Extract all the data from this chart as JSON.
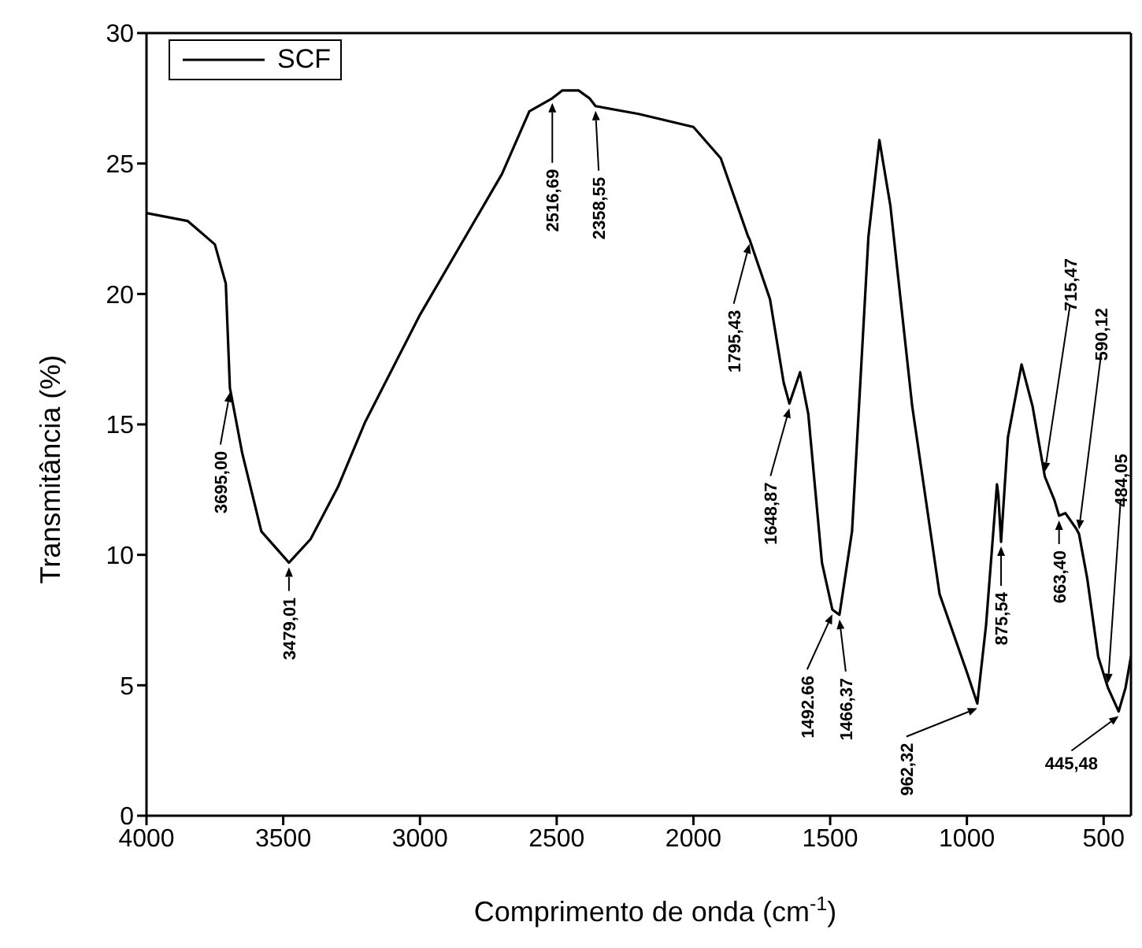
{
  "chart_data": {
    "type": "line",
    "xlabel": "Comprimento de onda (cm$^{-1}$)",
    "ylabel": "Transmitância (%)",
    "xlim": [
      4000,
      400
    ],
    "xticks": [
      4000,
      3500,
      3000,
      2500,
      2000,
      1500,
      1000,
      500
    ],
    "ylim": [
      0,
      30
    ],
    "yticks": [
      0,
      5,
      10,
      15,
      20,
      25,
      30
    ],
    "legend": "top left",
    "grid": false,
    "marker": "none",
    "line_style": "solid",
    "series": [
      {
        "name": "SCF",
        "color": "#000000",
        "x": [
          4000,
          3850,
          3750,
          3710,
          3695,
          3650,
          3580,
          3479,
          3400,
          3300,
          3200,
          3000,
          2800,
          2700,
          2600,
          2516,
          2480,
          2420,
          2380,
          2358,
          2200,
          2000,
          1900,
          1800,
          1795,
          1720,
          1670,
          1649,
          1610,
          1580,
          1530,
          1492,
          1466,
          1420,
          1360,
          1320,
          1280,
          1200,
          1100,
          1000,
          962,
          930,
          890,
          885,
          875,
          850,
          800,
          760,
          715,
          680,
          663,
          640,
          600,
          590,
          560,
          520,
          484,
          445,
          420,
          400
        ],
        "values": [
          23.1,
          22.8,
          21.9,
          20.4,
          16.4,
          13.9,
          10.9,
          9.7,
          10.6,
          12.6,
          15.1,
          19.2,
          22.8,
          24.6,
          27.0,
          27.5,
          27.8,
          27.8,
          27.5,
          27.2,
          26.9,
          26.4,
          25.2,
          22.2,
          22.1,
          19.8,
          16.6,
          15.8,
          17.0,
          15.4,
          9.7,
          7.9,
          7.7,
          10.9,
          22.2,
          25.9,
          23.4,
          15.7,
          8.5,
          5.5,
          4.3,
          7.3,
          12.7,
          12.3,
          10.5,
          14.5,
          17.3,
          15.7,
          13.0,
          12.1,
          11.5,
          11.6,
          11.0,
          10.8,
          9.1,
          6.1,
          4.9,
          4.0,
          4.9,
          6.1
        ]
      }
    ],
    "annotations": [
      {
        "text": "3695,00",
        "x": 3695,
        "y": 16.4
      },
      {
        "text": "3479,01",
        "x": 3479,
        "y": 9.7
      },
      {
        "text": "2516,69",
        "x": 2516,
        "y": 27.5
      },
      {
        "text": "2358,55",
        "x": 2358,
        "y": 27.2
      },
      {
        "text": "1795,43",
        "x": 1795,
        "y": 22.1
      },
      {
        "text": "1648,87",
        "x": 1649,
        "y": 15.8
      },
      {
        "text": "1492.66",
        "x": 1492,
        "y": 7.9
      },
      {
        "text": "1466,37",
        "x": 1466,
        "y": 7.7
      },
      {
        "text": "962,32",
        "x": 962,
        "y": 4.3
      },
      {
        "text": "875,54",
        "x": 875,
        "y": 10.5
      },
      {
        "text": "663,40",
        "x": 663,
        "y": 11.5
      },
      {
        "text": "715,47",
        "x": 715,
        "y": 13.0
      },
      {
        "text": "590,12",
        "x": 590,
        "y": 10.8
      },
      {
        "text": "484,05",
        "x": 484,
        "y": 4.9
      },
      {
        "text": "445,48",
        "x": 445,
        "y": 4.0
      }
    ]
  }
}
